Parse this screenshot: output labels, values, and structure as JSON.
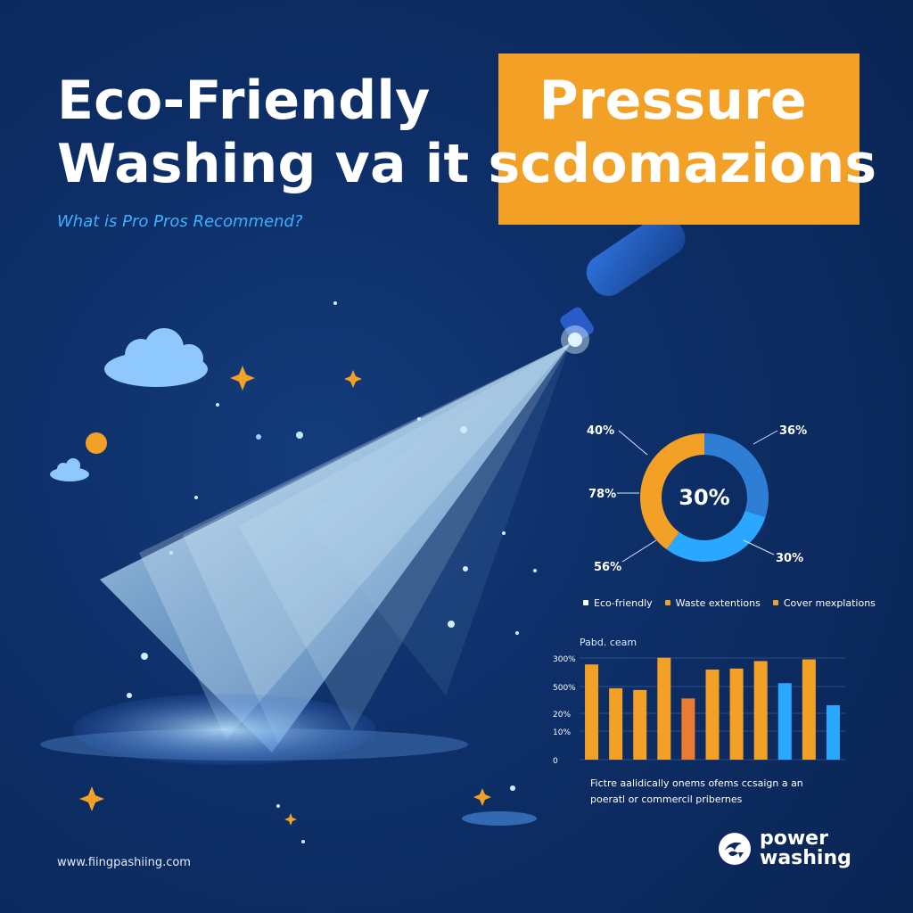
{
  "header": {
    "headline_line_1_part_1": "Eco-Friendly",
    "headline_line_1_part_2": "Pressure",
    "headline_line_2": "Washing va it scdomazions",
    "subtitle": "What is Pro Pros Recommend?"
  },
  "donut": {
    "center_label": "30%",
    "callouts": [
      "40%",
      "36%",
      "78%",
      "56%",
      "30%"
    ]
  },
  "legend": {
    "items": [
      {
        "label": "Eco-friendly",
        "color": "#ffffff"
      },
      {
        "label": "Waste extentions",
        "color": "#f2a126"
      },
      {
        "label": "Cover mexplations",
        "color": "#f2a126"
      }
    ]
  },
  "bars": {
    "title": "Pabd. ceam",
    "y_labels": [
      "300%",
      "500%",
      "20%",
      "10%",
      "0"
    ],
    "caption_line_1": "Fictre aalidically onems ofems ccsaign a an",
    "caption_line_2": "poeratl or commercil pribernes"
  },
  "footer": {
    "url": "www.fiingpashiing.com",
    "brand_line_1": "power",
    "brand_line_2": "washing"
  },
  "colors": {
    "background": "#0b2a5c",
    "accent_orange": "#f2a126",
    "accent_blue": "#2aa8ff",
    "spray_light": "#bfe7ff"
  },
  "chart_data": [
    {
      "type": "pie",
      "values": [
        30,
        30,
        40
      ],
      "colors": [
        "#2f7ed6",
        "#2aa8ff",
        "#f2a126"
      ],
      "center_text": "30%"
    },
    {
      "type": "bar",
      "categories": [
        "",
        "",
        "",
        "",
        "",
        "",
        "",
        "",
        "",
        "",
        ""
      ],
      "series": [
        {
          "values": [
            280,
            210,
            205,
            300,
            180,
            265,
            268,
            290,
            225,
            295,
            160
          ],
          "colors": [
            "#f2a126",
            "#f2a126",
            "#f2a126",
            "#f2a126",
            "#ec7b32",
            "#f2a126",
            "#f2a126",
            "#f2a126",
            "#2aa8ff",
            "#f2a126",
            "#2aa8ff"
          ]
        }
      ]
    }
  ],
  "icons": {
    "cloud": "cloud-icon",
    "sun": "sun-icon",
    "star": "star-icon",
    "nozzle": "pressure-nozzle-icon",
    "spray": "water-spray-icon",
    "brand": "brand-logo-icon"
  }
}
